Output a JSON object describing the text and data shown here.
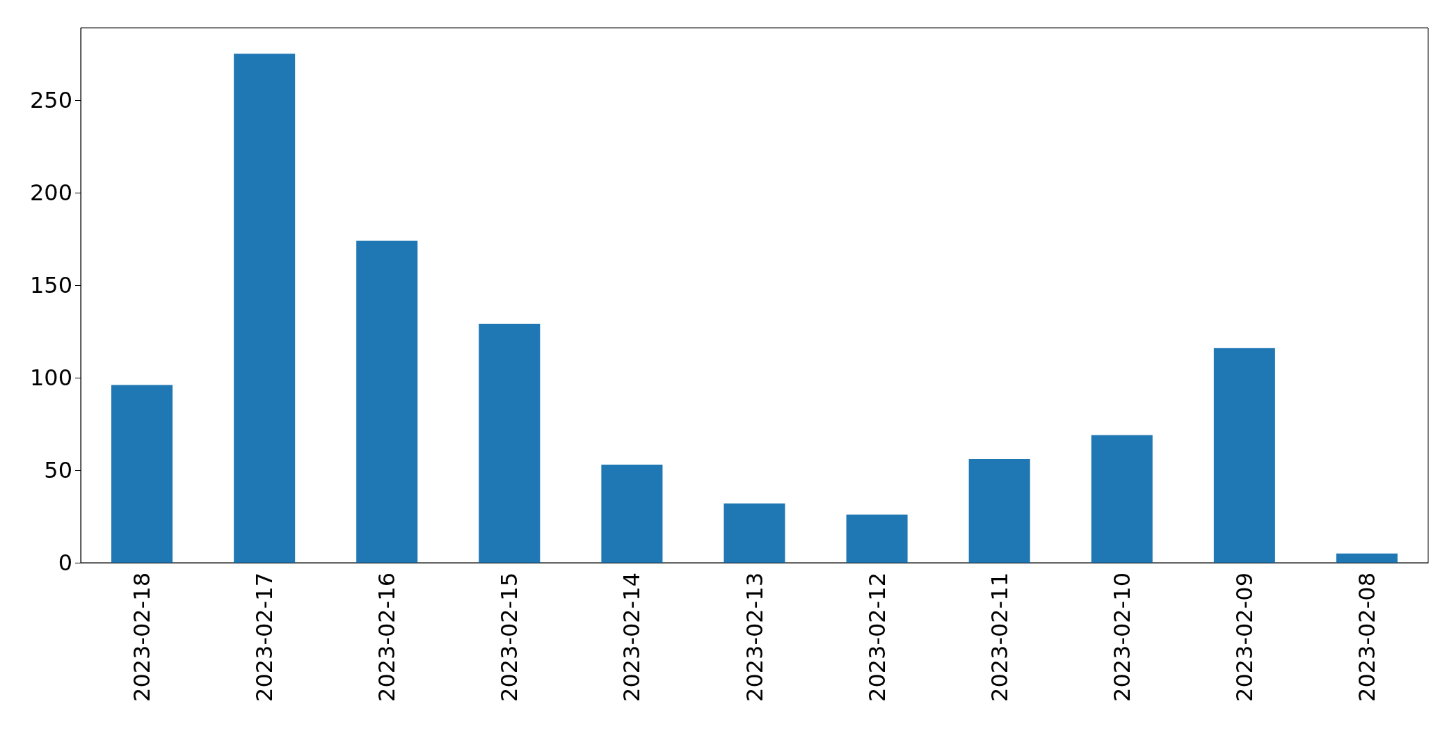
{
  "chart_data": {
    "type": "bar",
    "categories": [
      "2023-02-18",
      "2023-02-17",
      "2023-02-16",
      "2023-02-15",
      "2023-02-14",
      "2023-02-13",
      "2023-02-12",
      "2023-02-11",
      "2023-02-10",
      "2023-02-09",
      "2023-02-08"
    ],
    "values": [
      96,
      275,
      174,
      129,
      53,
      32,
      26,
      56,
      69,
      116,
      5
    ],
    "color": "#1f77b4",
    "ylim": [
      0,
      289
    ],
    "yticks": [
      0,
      50,
      100,
      150,
      200,
      250
    ],
    "grid": false
  }
}
